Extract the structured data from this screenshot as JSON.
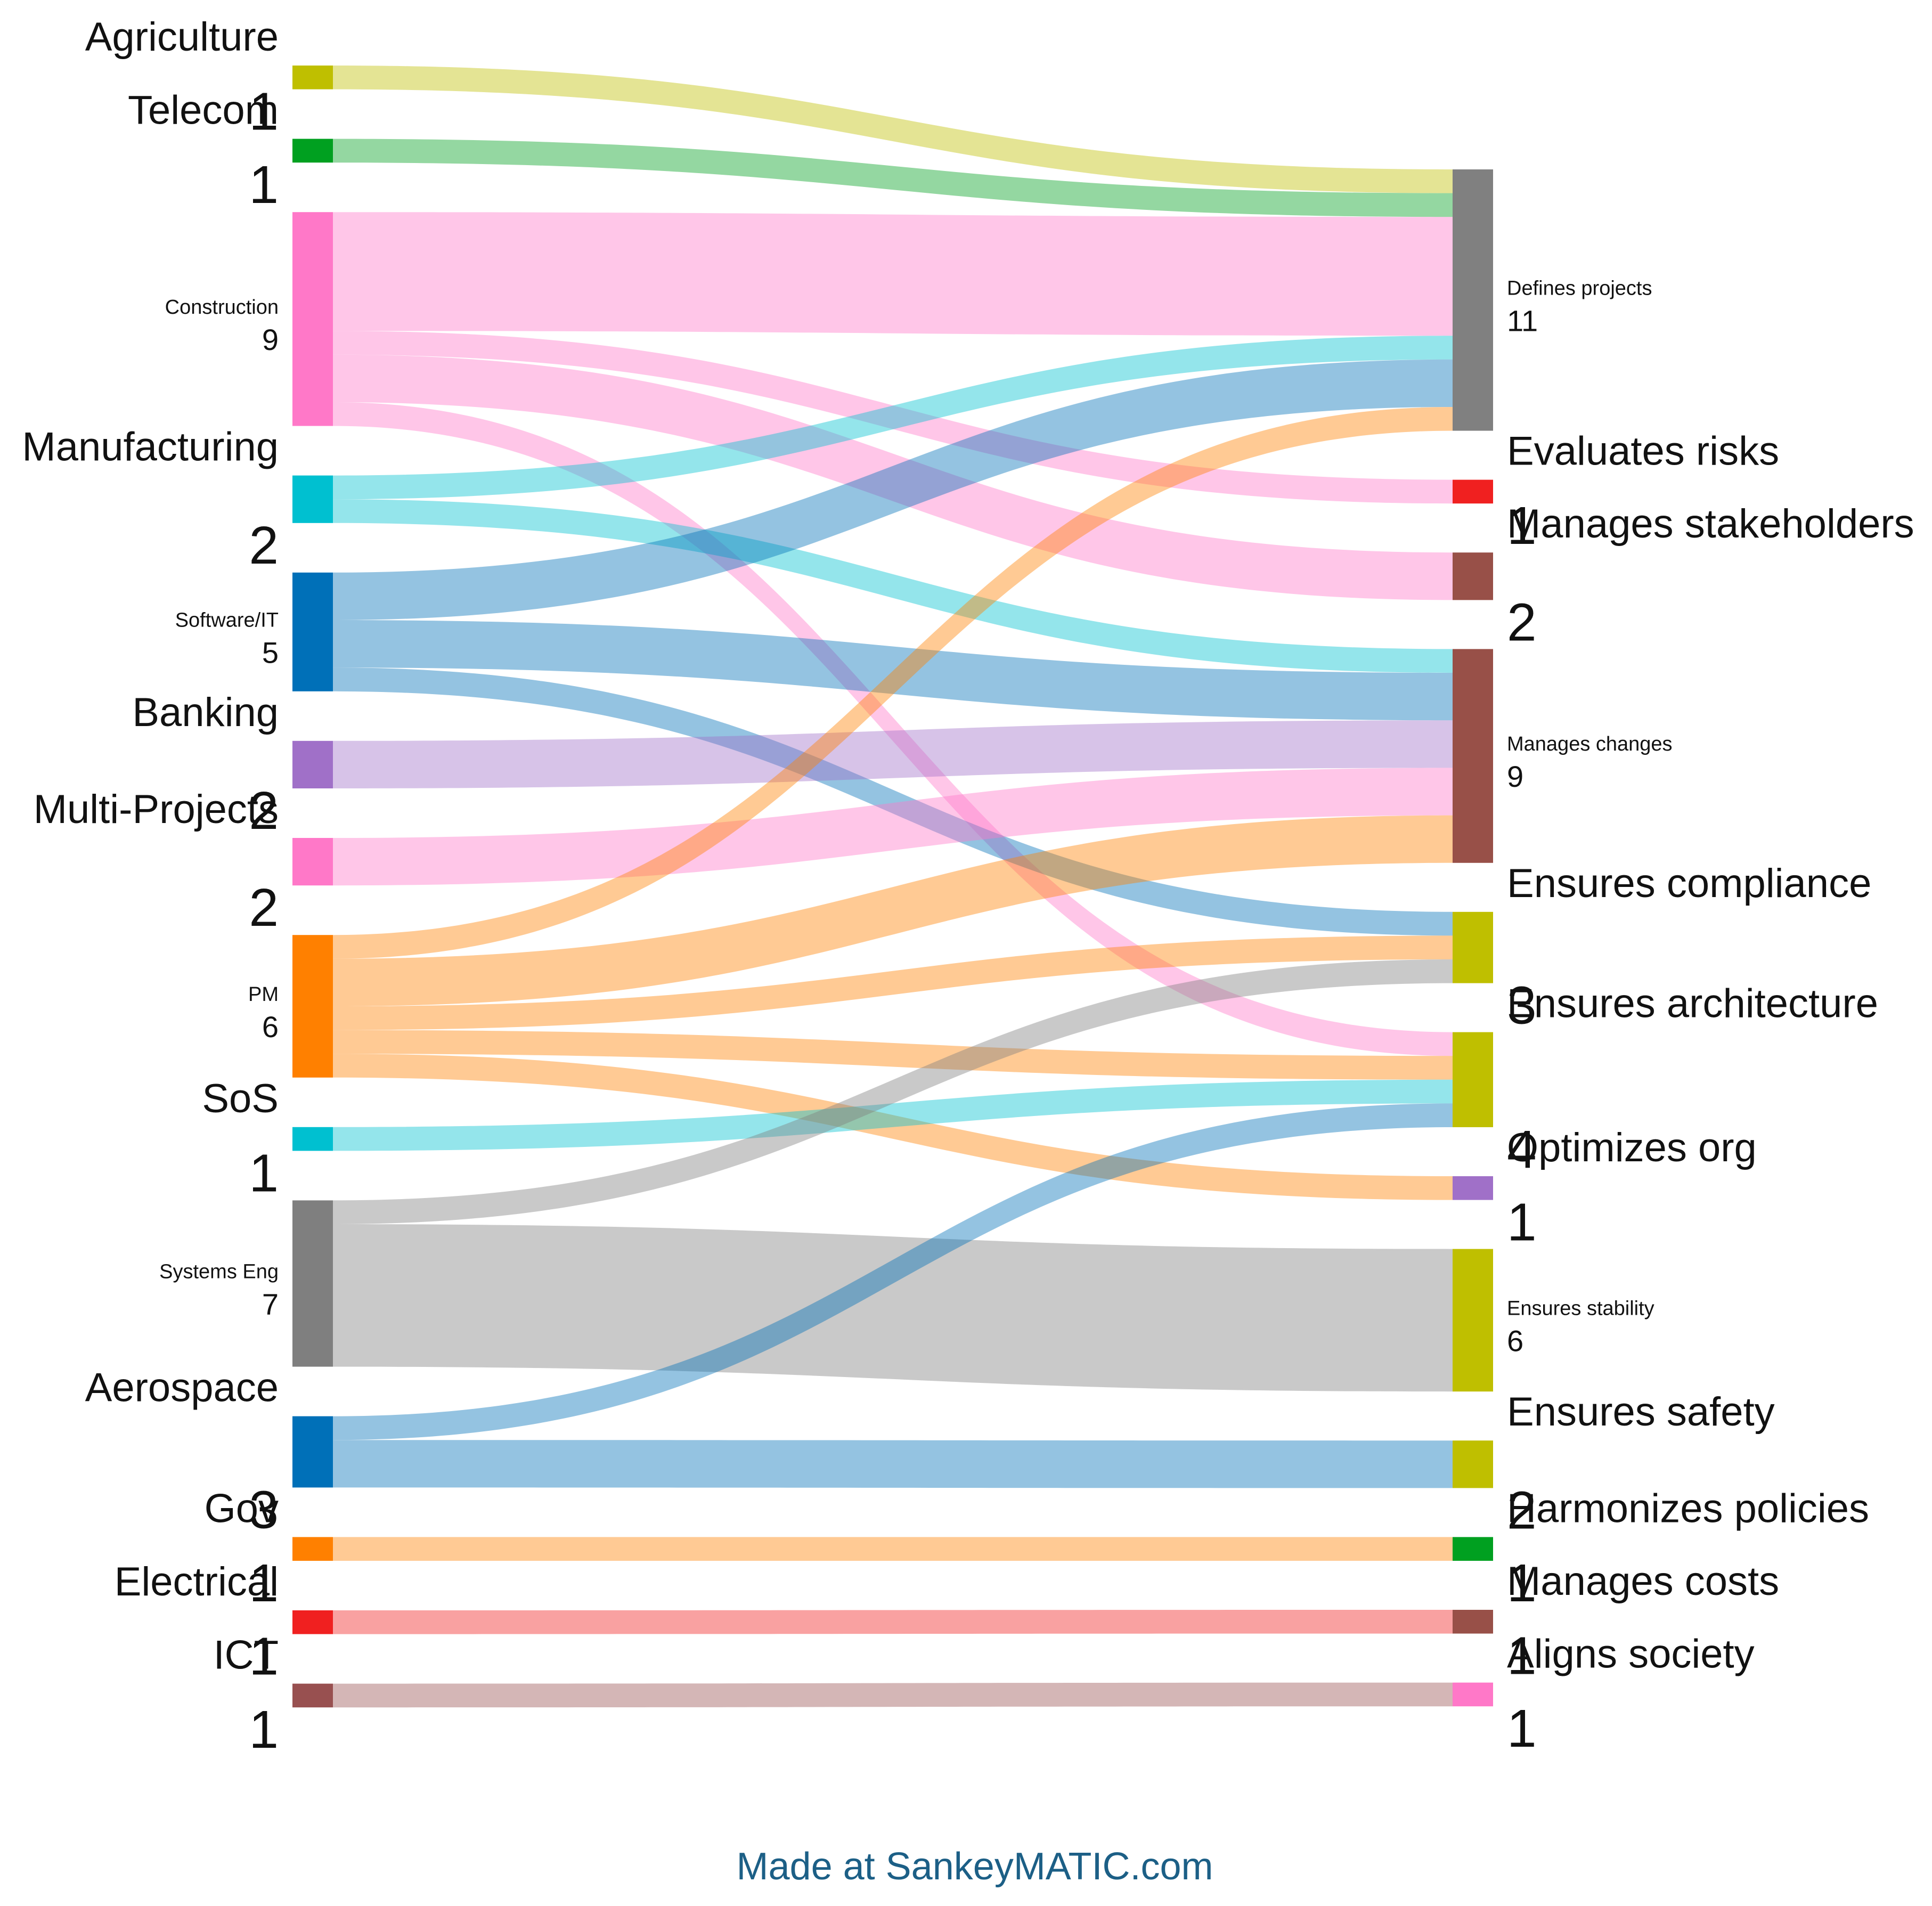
{
  "chart_data": {
    "type": "sankey",
    "credit": "Made at SankeyMATIC.com",
    "sources": [
      {
        "name": "Agriculture",
        "value": 1,
        "color": "#bfbf00"
      },
      {
        "name": "Telecom",
        "value": 1,
        "color": "#00a020"
      },
      {
        "name": "Construction",
        "value": 9,
        "color": "#ff78c8"
      },
      {
        "name": "Manufacturing",
        "value": 2,
        "color": "#00c0d0"
      },
      {
        "name": "Software/IT",
        "value": 5,
        "color": "#0070b8"
      },
      {
        "name": "Banking",
        "value": 2,
        "color": "#a070c8"
      },
      {
        "name": "Multi-Projects",
        "value": 2,
        "color": "#ff78c8"
      },
      {
        "name": "PM",
        "value": 6,
        "color": "#ff8000"
      },
      {
        "name": "SoS",
        "value": 1,
        "color": "#00c0d0"
      },
      {
        "name": "Systems Eng",
        "value": 7,
        "color": "#7f7f7f"
      },
      {
        "name": "Aerospace",
        "value": 3,
        "color": "#0070b8"
      },
      {
        "name": "Gov",
        "value": 1,
        "color": "#ff8000"
      },
      {
        "name": "Electrical",
        "value": 1,
        "color": "#f02020"
      },
      {
        "name": "ICT",
        "value": 1,
        "color": "#985050"
      }
    ],
    "targets": [
      {
        "name": "Defines projects",
        "value": 11,
        "color": "#808080"
      },
      {
        "name": "Evaluates risks",
        "value": 1,
        "color": "#f02020"
      },
      {
        "name": "Manages stakeholders",
        "value": 2,
        "color": "#985048"
      },
      {
        "name": "Manages changes",
        "value": 9,
        "color": "#985048"
      },
      {
        "name": "Ensures compliance",
        "value": 3,
        "color": "#bfbf00"
      },
      {
        "name": "Ensures architecture",
        "value": 4,
        "color": "#bfbf00"
      },
      {
        "name": "Optimizes org",
        "value": 1,
        "color": "#a070c8"
      },
      {
        "name": "Ensures stability",
        "value": 6,
        "color": "#bfbf00"
      },
      {
        "name": "Ensures safety",
        "value": 2,
        "color": "#bfbf00"
      },
      {
        "name": "Harmonizes policies",
        "value": 1,
        "color": "#00a020"
      },
      {
        "name": "Manages costs",
        "value": 1,
        "color": "#985048"
      },
      {
        "name": "Aligns society",
        "value": 1,
        "color": "#ff78c8"
      }
    ],
    "flows": [
      {
        "from": "Agriculture",
        "to": "Defines projects",
        "value": 1
      },
      {
        "from": "Telecom",
        "to": "Defines projects",
        "value": 1
      },
      {
        "from": "Construction",
        "to": "Defines projects",
        "value": 5
      },
      {
        "from": "Construction",
        "to": "Evaluates risks",
        "value": 1
      },
      {
        "from": "Construction",
        "to": "Manages stakeholders",
        "value": 2
      },
      {
        "from": "Construction",
        "to": "Ensures architecture",
        "value": 1
      },
      {
        "from": "Manufacturing",
        "to": "Defines projects",
        "value": 1
      },
      {
        "from": "Manufacturing",
        "to": "Manages changes",
        "value": 1
      },
      {
        "from": "Software/IT",
        "to": "Defines projects",
        "value": 2
      },
      {
        "from": "Software/IT",
        "to": "Manages changes",
        "value": 2
      },
      {
        "from": "Software/IT",
        "to": "Ensures compliance",
        "value": 1
      },
      {
        "from": "Banking",
        "to": "Manages changes",
        "value": 2
      },
      {
        "from": "Multi-Projects",
        "to": "Manages changes",
        "value": 2
      },
      {
        "from": "PM",
        "to": "Defines projects",
        "value": 1
      },
      {
        "from": "PM",
        "to": "Manages changes",
        "value": 2
      },
      {
        "from": "PM",
        "to": "Ensures compliance",
        "value": 1
      },
      {
        "from": "PM",
        "to": "Ensures architecture",
        "value": 1
      },
      {
        "from": "PM",
        "to": "Optimizes org",
        "value": 1
      },
      {
        "from": "SoS",
        "to": "Ensures architecture",
        "value": 1
      },
      {
        "from": "Systems Eng",
        "to": "Ensures compliance",
        "value": 1
      },
      {
        "from": "Systems Eng",
        "to": "Ensures stability",
        "value": 6
      },
      {
        "from": "Aerospace",
        "to": "Ensures architecture",
        "value": 1
      },
      {
        "from": "Aerospace",
        "to": "Ensures safety",
        "value": 2
      },
      {
        "from": "Gov",
        "to": "Harmonizes policies",
        "value": 1
      },
      {
        "from": "Electrical",
        "to": "Manages costs",
        "value": 1
      },
      {
        "from": "ICT",
        "to": "Aligns society",
        "value": 1
      }
    ]
  }
}
